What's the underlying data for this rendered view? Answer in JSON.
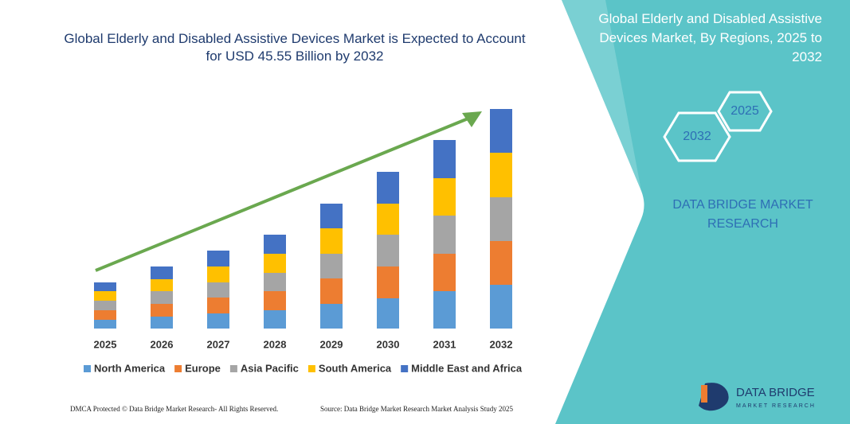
{
  "chart_data": {
    "type": "bar",
    "stacked": true,
    "title": "Global Elderly and Disabled Assistive Devices Market is Expected to Account for USD 45.55 Billion by 2032",
    "categories": [
      "2025",
      "2026",
      "2027",
      "2028",
      "2029",
      "2030",
      "2031",
      "2032"
    ],
    "series": [
      {
        "name": "North America",
        "color": "#5b9bd5",
        "values": [
          11,
          15,
          19,
          23,
          31,
          38,
          47,
          55
        ]
      },
      {
        "name": "Europe",
        "color": "#ed7d31",
        "values": [
          12,
          16,
          20,
          24,
          32,
          40,
          47,
          55
        ]
      },
      {
        "name": "Asia Pacific",
        "color": "#a5a5a5",
        "values": [
          12,
          16,
          19,
          23,
          31,
          40,
          48,
          55
        ]
      },
      {
        "name": "South America",
        "color": "#ffc000",
        "values": [
          12,
          15,
          20,
          24,
          32,
          39,
          47,
          56
        ]
      },
      {
        "name": "Middle East and Africa",
        "color": "#4472c4",
        "values": [
          11,
          16,
          20,
          24,
          31,
          40,
          48,
          55
        ]
      }
    ]
  },
  "panel": {
    "title": "Global Elderly and Disabled Assistive Devices Market, By Regions, 2025 to 2032",
    "hexagons": [
      "2032",
      "2025"
    ],
    "brand": "DATA BRIDGE MARKET RESEARCH"
  },
  "logo": {
    "name": "DATA BRIDGE",
    "tagline": "MARKET RESEARCH"
  },
  "footer": {
    "left": "DMCA Protected © Data Bridge Market Research- All Rights Reserved.",
    "right": "Source: Data Bridge Market Research Market Analysis Study 2025"
  }
}
